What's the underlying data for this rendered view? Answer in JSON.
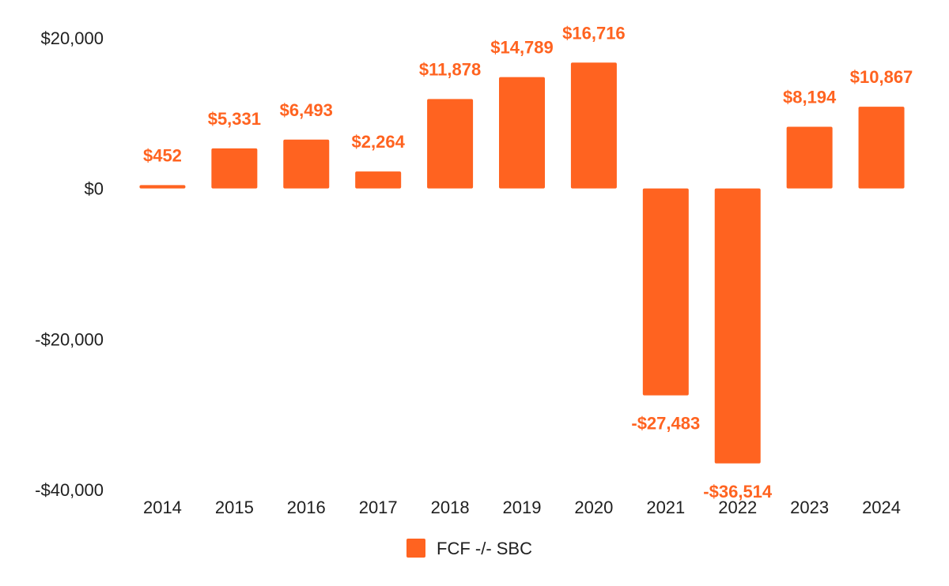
{
  "chart_data": {
    "type": "bar",
    "title": "",
    "xlabel": "",
    "ylabel": "",
    "categories": [
      "2014",
      "2015",
      "2016",
      "2017",
      "2018",
      "2019",
      "2020",
      "2021",
      "2022",
      "2023",
      "2024"
    ],
    "series": [
      {
        "name": "FCF -/- SBC",
        "values": [
          452,
          5331,
          6493,
          2264,
          11878,
          14789,
          16716,
          -27483,
          -36514,
          8194,
          10867
        ],
        "labels": [
          "$452",
          "$5,331",
          "$6,493",
          "$2,264",
          "$11,878",
          "$14,789",
          "$16,716",
          "-$27,483",
          "-$36,514",
          "$8,194",
          "$10,867"
        ]
      }
    ],
    "ylim": [
      -40000,
      20000
    ],
    "yticks": [
      20000,
      0,
      -20000,
      -40000
    ],
    "ytick_labels": [
      "$20,000",
      "$0",
      "-$20,000",
      "-$40,000"
    ],
    "grid": false,
    "legend_position": "bottom-center",
    "colors": {
      "bar": "#ff6320",
      "label": "#ff6320",
      "text": "#1f1f1f"
    }
  }
}
